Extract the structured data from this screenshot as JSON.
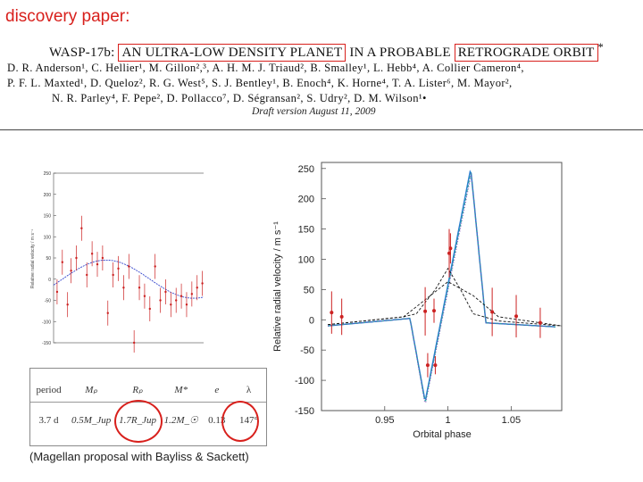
{
  "slide_label": "discovery paper:",
  "paper": {
    "title_prefix": "WASP-17b:",
    "title_highlight_1": "AN ULTRA-LOW DENSITY PLANET",
    "title_middle": "IN A PROBABLE",
    "title_highlight_2": "RETROGRADE ORBIT",
    "title_mark": "*",
    "authors_line1": "D. R. Anderson¹, C. Hellier¹, M. Gillon²,³, A. H. M. J. Triaud², B. Smalley¹, L. Hebb⁴, A. Collier Cameron⁴,",
    "authors_line2": "P. F. L. Maxted¹, D. Queloz², R. G. West⁵, S. J. Bentley¹, B. Enoch⁴, K. Horne⁴, T. A. Lister⁶, M. Mayor²,",
    "authors_line3": "N. R. Parley⁴, F. Pepe², D. Pollacco⁷, D. Ségransan², S. Udry², D. M. Wilson¹•",
    "draft": "Draft version August 11, 2009"
  },
  "caption": "(Magellan proposal with Bayliss & Sackett)",
  "accent_color": "#d8201c",
  "param_table": {
    "headers": [
      "period",
      "Mₚ",
      "Rₚ",
      "M*",
      "e",
      "λ"
    ],
    "values": [
      "3.7 d",
      "0.5M_Jup",
      "1.7R_Jup",
      "1.2M_☉",
      "0.13",
      "147°"
    ]
  },
  "chart_data": [
    {
      "type": "scatter",
      "title": "",
      "xlabel": "",
      "ylabel": "Relative radial velocity / m s⁻¹",
      "ylim": [
        -150,
        250
      ],
      "yticks": [
        "250",
        "200",
        "150",
        "100",
        "50",
        "0",
        "-50",
        "-100",
        "-150"
      ],
      "grid": false,
      "series": [
        {
          "values": [
            [
              0.02,
              -30
            ],
            [
              0.05,
              40
            ],
            [
              0.08,
              -60
            ],
            [
              0.1,
              20
            ],
            [
              0.13,
              50
            ],
            [
              0.16,
              120
            ],
            [
              0.19,
              10
            ],
            [
              0.22,
              60
            ],
            [
              0.25,
              35
            ],
            [
              0.28,
              50
            ],
            [
              0.31,
              -80
            ],
            [
              0.34,
              10
            ],
            [
              0.37,
              25
            ],
            [
              0.4,
              -20
            ],
            [
              0.43,
              30
            ],
            [
              0.46,
              -150
            ],
            [
              0.49,
              -20
            ],
            [
              0.52,
              -40
            ],
            [
              0.55,
              -70
            ],
            [
              0.58,
              30
            ],
            [
              0.61,
              -50
            ],
            [
              0.64,
              -30
            ],
            [
              0.67,
              -60
            ],
            [
              0.7,
              -50
            ],
            [
              0.73,
              -40
            ],
            [
              0.76,
              -60
            ],
            [
              0.79,
              -35
            ],
            [
              0.82,
              -20
            ],
            [
              0.85,
              -10
            ],
            [
              0.88,
              5
            ],
            [
              0.91,
              10
            ],
            [
              0.94,
              -25
            ],
            [
              0.97,
              -20
            ]
          ]
        }
      ]
    },
    {
      "type": "line",
      "title": "",
      "xlabel": "Orbital phase",
      "ylabel": "Relative radial velocity / m s⁻¹",
      "xlim": [
        0.9,
        1.09
      ],
      "ylim": [
        -150,
        260
      ],
      "xticks": [
        "0.95",
        "1",
        "1.05"
      ],
      "yticks": [
        "250",
        "200",
        "150",
        "100",
        "50",
        "0",
        "-50",
        "-100",
        "-150"
      ],
      "series": [
        {
          "name": "",
          "values": [
            [
              0.905,
              -10
            ],
            [
              0.97,
              2
            ],
            [
              0.982,
              -135
            ],
            [
              1.018,
              0
            ],
            [
              1.03,
              -5
            ],
            [
              1.09,
              -12
            ]
          ]
        },
        {
          "name": "",
          "values": [
            [
              0.905,
              -10
            ],
            [
              0.97,
              2
            ],
            [
              0.982,
              -140
            ],
            [
              1.018,
              0
            ],
            [
              1.03,
              -5
            ],
            [
              1.09,
              -13
            ]
          ]
        },
        {
          "name": "",
          "values": [
            [
              0.905,
              -8
            ],
            [
              0.965,
              5
            ],
            [
              0.98,
              30
            ],
            [
              1.0,
              63
            ],
            [
              1.02,
              40
            ],
            [
              1.04,
              5
            ],
            [
              1.09,
              -10
            ]
          ]
        },
        {
          "name": "",
          "values": [
            [
              0.905,
              -8
            ],
            [
              0.965,
              5
            ],
            [
              0.975,
              10
            ],
            [
              0.99,
              50
            ],
            [
              1.0,
              85
            ],
            [
              1.01,
              50
            ],
            [
              1.02,
              10
            ],
            [
              1.04,
              -2
            ],
            [
              1.09,
              -10
            ]
          ]
        }
      ],
      "points": [
        {
          "x": 0.908,
          "y": 12,
          "err": 35
        },
        {
          "x": 0.916,
          "y": 5,
          "err": 30
        },
        {
          "x": 0.982,
          "y": 14,
          "err": 40
        },
        {
          "x": 0.989,
          "y": 15,
          "err": 20
        },
        {
          "x": 0.984,
          "y": -75,
          "err": 20
        },
        {
          "x": 0.99,
          "y": -75,
          "err": 15
        },
        {
          "x": 1.001,
          "y": 110,
          "err": 40
        },
        {
          "x": 1.002,
          "y": 118,
          "err": 25
        },
        {
          "x": 1.035,
          "y": 13,
          "err": 40
        },
        {
          "x": 1.054,
          "y": 6,
          "err": 35
        },
        {
          "x": 1.073,
          "y": -5,
          "err": 25
        }
      ]
    }
  ]
}
